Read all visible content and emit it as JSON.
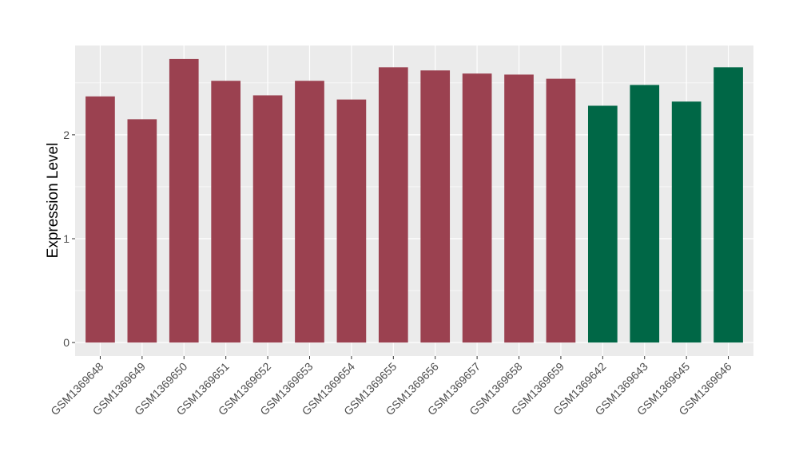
{
  "chart_data": {
    "type": "bar",
    "title": "",
    "xlabel": "",
    "ylabel": "Expression Level",
    "ylim": [
      -0.13,
      2.86
    ],
    "yticks": [
      0,
      1,
      2
    ],
    "grid": true,
    "legend": "none",
    "categories": [
      "GSM1369648",
      "GSM1369649",
      "GSM1369650",
      "GSM1369651",
      "GSM1369652",
      "GSM1369653",
      "GSM1369654",
      "GSM1369655",
      "GSM1369656",
      "GSM1369657",
      "GSM1369658",
      "GSM1369659",
      "GSM1369642",
      "GSM1369643",
      "GSM1369645",
      "GSM1369646"
    ],
    "values": [
      2.37,
      2.15,
      2.73,
      2.52,
      2.38,
      2.52,
      2.34,
      2.65,
      2.62,
      2.59,
      2.58,
      2.54,
      2.28,
      2.48,
      2.32,
      2.65
    ],
    "groups": [
      "a",
      "a",
      "a",
      "a",
      "a",
      "a",
      "a",
      "a",
      "a",
      "a",
      "a",
      "a",
      "b",
      "b",
      "b",
      "b"
    ],
    "colors": {
      "a": "#9B4150",
      "b": "#006746"
    },
    "panel_background": "#EBEBEB"
  }
}
